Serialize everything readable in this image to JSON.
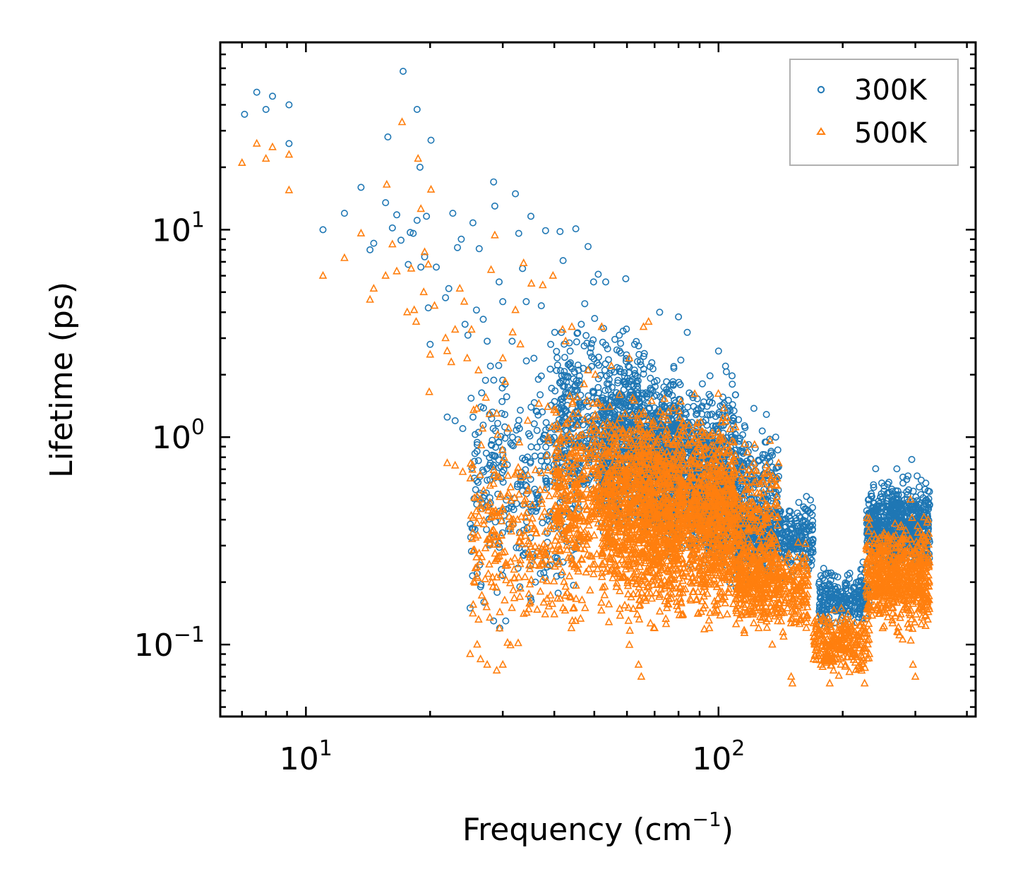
{
  "chart_data": {
    "type": "scatter",
    "xscale": "log",
    "yscale": "log",
    "xlim": [
      6.2,
      420
    ],
    "ylim": [
      0.045,
      80
    ],
    "xlabel": "Frequency (cm",
    "xlabel_sup": "−1",
    "xlabel_end": ")",
    "ylabel": "Lifetime (ps)",
    "x_ticks": [
      {
        "value": 10,
        "base": "10",
        "exp": "1"
      },
      {
        "value": 100,
        "base": "10",
        "exp": "2"
      }
    ],
    "y_ticks": [
      {
        "value": 0.1,
        "base": "10",
        "exp": "−1"
      },
      {
        "value": 1,
        "base": "10",
        "exp": "0"
      },
      {
        "value": 10,
        "base": "10",
        "exp": "1"
      }
    ],
    "legend_position": "top-right",
    "series": [
      {
        "name": "300K",
        "marker": "circle",
        "color": "#1f77b4",
        "points": [
          [
            7.1,
            36
          ],
          [
            7.6,
            46
          ],
          [
            8.0,
            38
          ],
          [
            8.3,
            44
          ],
          [
            9.1,
            40
          ],
          [
            9.1,
            26
          ],
          [
            11,
            10
          ],
          [
            12.4,
            12
          ],
          [
            13.6,
            16
          ],
          [
            14.3,
            8
          ],
          [
            14.6,
            8.6
          ],
          [
            15.6,
            13.5
          ],
          [
            15.8,
            28
          ],
          [
            16.2,
            10.2
          ],
          [
            16.6,
            11.8
          ],
          [
            17.0,
            8.9
          ],
          [
            17.2,
            58
          ],
          [
            17.7,
            6.8
          ],
          [
            18.2,
            9.6
          ],
          [
            18.6,
            11.1
          ],
          [
            19.0,
            6.6
          ],
          [
            19.4,
            7.4
          ],
          [
            19.6,
            11.6
          ],
          [
            19.8,
            4.2
          ],
          [
            20.0,
            2.8
          ],
          [
            20.1,
            27
          ],
          [
            18.9,
            20
          ],
          [
            18.6,
            38
          ],
          [
            17.9,
            9.7
          ],
          [
            20.7,
            6.6
          ],
          [
            21.8,
            4.7
          ],
          [
            22.2,
            5.2
          ],
          [
            22.7,
            12
          ],
          [
            23.3,
            8.2
          ],
          [
            23.8,
            9.0
          ],
          [
            24.3,
            3.5
          ],
          [
            24.7,
            3.1
          ],
          [
            25.4,
            10.8
          ],
          [
            25.9,
            4.1
          ],
          [
            26.3,
            8.1
          ],
          [
            26.9,
            3.7
          ],
          [
            27.5,
            2.9
          ],
          [
            28.0,
            2.2
          ],
          [
            28.5,
            17
          ],
          [
            28.7,
            13
          ],
          [
            29.4,
            5.6
          ],
          [
            30.0,
            4.5
          ],
          [
            30.4,
            1.8
          ],
          [
            31.6,
            2.9
          ],
          [
            32.2,
            14.9
          ],
          [
            32.8,
            9.6
          ],
          [
            33.5,
            6.5
          ],
          [
            34.2,
            4.5
          ],
          [
            35.1,
            11.6
          ],
          [
            35.7,
            2.4
          ],
          [
            36.6,
            1.9
          ],
          [
            37.2,
            4.3
          ],
          [
            38.1,
            9.9
          ],
          [
            39.2,
            2.8
          ],
          [
            40.1,
            3.2
          ],
          [
            41.3,
            9.8
          ],
          [
            42.0,
            7.1
          ],
          [
            43.7,
            2.6
          ],
          [
            45.1,
            10.1
          ],
          [
            46.5,
            3.5
          ],
          [
            47.4,
            4.4
          ],
          [
            48.3,
            8.3
          ],
          [
            49.8,
            5.6
          ],
          [
            51.1,
            6.1
          ],
          [
            53.3,
            5.6
          ],
          [
            55.0,
            2.1
          ],
          [
            57.5,
            3.1
          ],
          [
            59.6,
            5.8
          ],
          [
            62.6,
            2.8
          ],
          [
            22,
            1.25
          ],
          [
            23,
            1.2
          ],
          [
            24,
            1.1
          ],
          [
            26,
            0.92
          ],
          [
            27.5,
            0.62
          ],
          [
            26,
            0.22
          ],
          [
            26.5,
            0.19
          ],
          [
            27,
            0.16
          ],
          [
            28.5,
            0.13
          ],
          [
            29.5,
            0.12
          ],
          [
            30.5,
            0.13
          ],
          [
            25,
            0.15
          ],
          [
            28.5,
            0.33
          ],
          [
            29.5,
            0.44
          ],
          [
            31,
            0.36
          ],
          [
            31.5,
            0.48
          ],
          [
            34,
            0.29
          ],
          [
            35,
            0.24
          ],
          [
            33,
            0.19
          ],
          [
            36,
            0.2
          ],
          [
            37,
            0.22
          ],
          [
            38,
            0.21
          ],
          [
            39,
            0.24
          ],
          [
            40.5,
            0.25
          ],
          [
            42,
            0.25
          ],
          [
            44,
            0.26
          ],
          [
            45,
            0.7
          ],
          [
            46,
            0.45
          ],
          [
            48,
            0.6
          ],
          [
            49,
            0.8
          ],
          [
            52,
            0.9
          ],
          [
            72,
            4.0
          ],
          [
            80,
            3.8
          ],
          [
            84,
            3.2
          ],
          [
            100,
            2.6
          ],
          [
            104,
            2.2
          ],
          [
            108,
            1.8
          ],
          [
            110,
            1.6
          ],
          [
            115,
            0.85
          ],
          [
            118,
            0.85
          ],
          [
            121,
            0.6
          ],
          [
            130,
            0.5
          ],
          [
            140,
            0.45
          ],
          [
            150,
            0.38
          ],
          [
            155,
            0.28
          ],
          [
            160,
            0.25
          ],
          [
            166,
            0.25
          ],
          [
            178,
            0.13
          ],
          [
            182,
            0.14
          ],
          [
            186,
            0.1
          ],
          [
            196,
            0.16
          ],
          [
            205,
            0.16
          ],
          [
            218,
            0.2
          ],
          [
            224,
            0.25
          ],
          [
            238,
            0.25
          ],
          [
            240,
            0.3
          ],
          [
            250,
            0.3
          ],
          [
            256,
            0.4
          ],
          [
            265,
            0.5
          ],
          [
            272,
            0.55
          ],
          [
            280,
            0.6
          ],
          [
            288,
            0.65
          ],
          [
            294,
            0.78
          ],
          [
            303,
            0.65
          ],
          [
            310,
            0.62
          ],
          [
            318,
            0.6
          ],
          [
            322,
            0.55
          ]
        ],
        "bands": [
          {
            "x": [
              25,
              47
            ],
            "y": [
              0.13,
              3.2
            ],
            "n": 320
          },
          {
            "x": [
              40,
              65
            ],
            "y": [
              0.3,
              4.5
            ],
            "n": 480
          },
          {
            "x": [
              52,
              82
            ],
            "y": [
              0.22,
              3.0
            ],
            "n": 700
          },
          {
            "x": [
              65,
              110
            ],
            "y": [
              0.2,
              2.6
            ],
            "n": 800
          },
          {
            "x": [
              85,
              140
            ],
            "y": [
              0.16,
              1.6
            ],
            "n": 600
          },
          {
            "x": [
              110,
              170
            ],
            "y": [
              0.2,
              0.55
            ],
            "n": 400
          },
          {
            "x": [
              175,
              232
            ],
            "y": [
              0.11,
              0.25
            ],
            "n": 250
          },
          {
            "x": [
              228,
              325
            ],
            "y": [
              0.2,
              0.72
            ],
            "n": 650
          }
        ]
      },
      {
        "name": "500K",
        "marker": "triangle",
        "color": "#ff7f0e",
        "points": [
          [
            7.0,
            21
          ],
          [
            7.6,
            26
          ],
          [
            8.0,
            22
          ],
          [
            8.3,
            25
          ],
          [
            9.1,
            23
          ],
          [
            9.1,
            15.5
          ],
          [
            11,
            6
          ],
          [
            12.4,
            7.3
          ],
          [
            13.6,
            9.6
          ],
          [
            14.3,
            4.6
          ],
          [
            14.6,
            5.2
          ],
          [
            15.6,
            6
          ],
          [
            15.7,
            16.5
          ],
          [
            16.2,
            8.5
          ],
          [
            16.6,
            6.3
          ],
          [
            17.1,
            33
          ],
          [
            17.6,
            4
          ],
          [
            18.0,
            6.5
          ],
          [
            18.5,
            3.6
          ],
          [
            18.7,
            22
          ],
          [
            19.0,
            12.6
          ],
          [
            19.4,
            7.8
          ],
          [
            19.8,
            6.8
          ],
          [
            20.0,
            2.5
          ],
          [
            20.1,
            15.6
          ],
          [
            19.9,
            1.65
          ],
          [
            20.5,
            4.3
          ],
          [
            19.3,
            5.0
          ],
          [
            18.3,
            4.1
          ],
          [
            21.8,
            3.0
          ],
          [
            22.0,
            2.6
          ],
          [
            22.5,
            2.3
          ],
          [
            23.0,
            3.3
          ],
          [
            23.6,
            5.2
          ],
          [
            24.2,
            4.5
          ],
          [
            24.6,
            2.4
          ],
          [
            25.2,
            3.3
          ],
          [
            25.5,
            1.35
          ],
          [
            26.2,
            2.1
          ],
          [
            26.8,
            1.1
          ],
          [
            27.3,
            1.55
          ],
          [
            28.1,
            6.4
          ],
          [
            28.7,
            9.4
          ],
          [
            29.0,
            1.3
          ],
          [
            30.0,
            2.4
          ],
          [
            30.4,
            1.85
          ],
          [
            31.0,
            1.1
          ],
          [
            31.7,
            3.2
          ],
          [
            32.2,
            4.1
          ],
          [
            33.1,
            2.8
          ],
          [
            33.7,
            6.9
          ],
          [
            34.5,
            1.2
          ],
          [
            35.2,
            5.5
          ],
          [
            36.7,
            1.45
          ],
          [
            37.5,
            5.4
          ],
          [
            38.6,
            1.4
          ],
          [
            39.7,
            6.0
          ],
          [
            40.3,
            1.35
          ],
          [
            41.9,
            3.3
          ],
          [
            42.6,
            2.9
          ],
          [
            44.1,
            3.4
          ],
          [
            45.7,
            1.3
          ],
          [
            47.2,
            1.8
          ],
          [
            48.3,
            2.1
          ],
          [
            50.3,
            2.0
          ],
          [
            52.1,
            3.4
          ],
          [
            55.0,
            2.2
          ],
          [
            57.6,
            1.6
          ],
          [
            60.8,
            2.4
          ],
          [
            65.8,
            3.4
          ],
          [
            67.7,
            3.6
          ],
          [
            22,
            0.75
          ],
          [
            23,
            0.73
          ],
          [
            24,
            0.68
          ],
          [
            26.5,
            0.45
          ],
          [
            27,
            0.38
          ],
          [
            27.5,
            0.32
          ],
          [
            26,
            0.1
          ],
          [
            26.5,
            0.085
          ],
          [
            27.5,
            0.08
          ],
          [
            29,
            0.075
          ],
          [
            30,
            0.08
          ],
          [
            25,
            0.09
          ],
          [
            29,
            0.26
          ],
          [
            30.5,
            0.24
          ],
          [
            32,
            0.21
          ],
          [
            33,
            0.17
          ],
          [
            35,
            0.16
          ],
          [
            37,
            0.18
          ],
          [
            38,
            0.14
          ],
          [
            40,
            0.14
          ],
          [
            42,
            0.15
          ],
          [
            44,
            0.12
          ],
          [
            45,
            0.13
          ],
          [
            47.5,
            0.15
          ],
          [
            35,
            0.27
          ],
          [
            38,
            0.35
          ],
          [
            64,
            0.08
          ],
          [
            65,
            0.07
          ],
          [
            70,
            0.12
          ],
          [
            75,
            0.15
          ],
          [
            82,
            0.14
          ],
          [
            95,
            0.12
          ],
          [
            105,
            0.14
          ],
          [
            120,
            0.17
          ],
          [
            135,
            0.1
          ],
          [
            150,
            0.07
          ],
          [
            151,
            0.065
          ],
          [
            170,
            0.085
          ],
          [
            177,
            0.08
          ],
          [
            186,
            0.065
          ],
          [
            190,
            0.075
          ],
          [
            198,
            0.08
          ],
          [
            212,
            0.09
          ],
          [
            220,
            0.1
          ],
          [
            226,
            0.065
          ],
          [
            232,
            0.09
          ],
          [
            250,
            0.12
          ],
          [
            264,
            0.19
          ],
          [
            272,
            0.21
          ],
          [
            288,
            0.24
          ],
          [
            292,
            0.5
          ],
          [
            296,
            0.08
          ],
          [
            300,
            0.07
          ],
          [
            303,
            0.3
          ],
          [
            315,
            0.32
          ],
          [
            322,
            0.4
          ]
        ],
        "bands": [
          {
            "x": [
              25,
              47
            ],
            "y": [
              0.075,
              1.6
            ],
            "n": 320
          },
          {
            "x": [
              40,
              65
            ],
            "y": [
              0.16,
              2.0
            ],
            "n": 480
          },
          {
            "x": [
              52,
              82
            ],
            "y": [
              0.09,
              1.8
            ],
            "n": 750
          },
          {
            "x": [
              65,
              110
            ],
            "y": [
              0.1,
              2.1
            ],
            "n": 850
          },
          {
            "x": [
              85,
              140
            ],
            "y": [
              0.1,
              1.2
            ],
            "n": 620
          },
          {
            "x": [
              110,
              165
            ],
            "y": [
              0.1,
              0.35
            ],
            "n": 420
          },
          {
            "x": [
              170,
              232
            ],
            "y": [
              0.065,
              0.16
            ],
            "n": 260
          },
          {
            "x": [
              228,
              325
            ],
            "y": [
              0.1,
              0.45
            ],
            "n": 650
          }
        ]
      }
    ]
  }
}
